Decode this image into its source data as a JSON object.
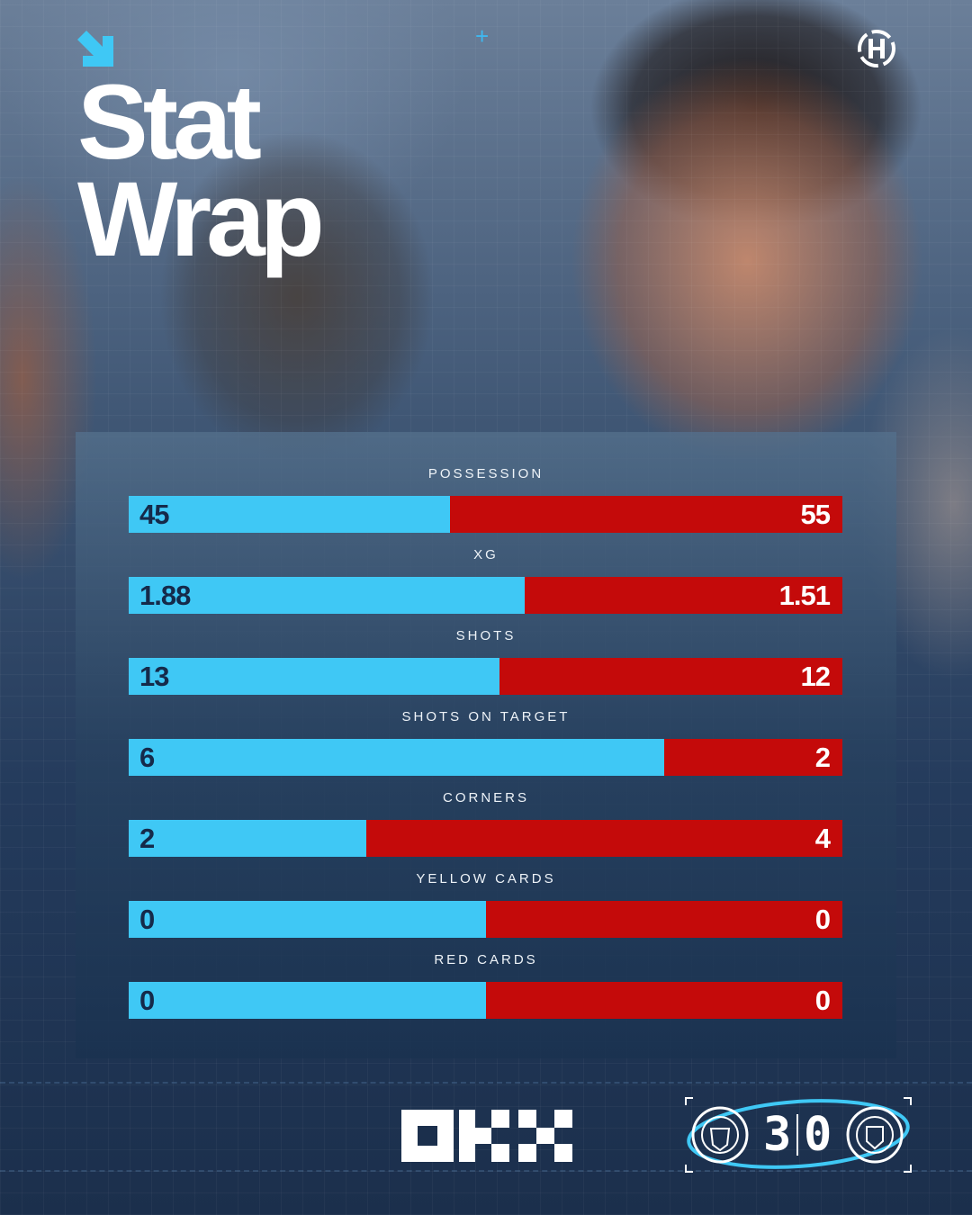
{
  "header": {
    "title_line1": "Stat",
    "title_line2": "Wrap"
  },
  "colors": {
    "home": "#3fc8f5",
    "away": "#c40a0a",
    "home_text": "#152a4a",
    "away_text": "#ffffff"
  },
  "chart_data": {
    "type": "bar",
    "orientation": "horizontal-stacked-share",
    "categories": [
      "POSSESSION",
      "XG",
      "SHOTS",
      "SHOTS ON TARGET",
      "CORNERS",
      "YELLOW CARDS",
      "RED CARDS"
    ],
    "series": [
      {
        "values": [
          45,
          1.88,
          13,
          6,
          2,
          0,
          0
        ],
        "labels": [
          "45",
          "1.88",
          "13",
          "6",
          "2",
          "0",
          "0"
        ]
      },
      {
        "values": [
          55,
          1.51,
          12,
          2,
          4,
          0,
          0
        ],
        "labels": [
          "55",
          "1.51",
          "12",
          "2",
          "4",
          "0",
          "0"
        ]
      }
    ]
  },
  "footer": {
    "sponsor_icon": "okx-logo",
    "home_crest_icon": "manchester-city-crest",
    "away_crest_icon": "manchester-united-crest",
    "home_score": "3",
    "away_score": "0"
  }
}
